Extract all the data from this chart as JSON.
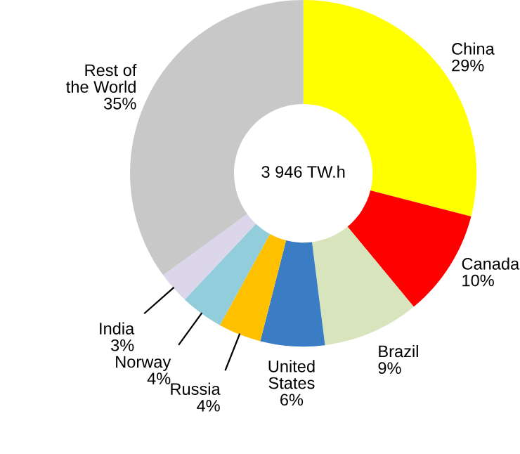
{
  "chart_data": {
    "type": "donut",
    "categories": [
      "China",
      "Canada",
      "Brazil",
      "United States",
      "Russia",
      "Norway",
      "India",
      "Rest of the World"
    ],
    "values": [
      29,
      10,
      9,
      6,
      4,
      4,
      3,
      35
    ],
    "value_labels": [
      "29%",
      "10%",
      "9%",
      "6%",
      "4%",
      "4%",
      "3%",
      "35%"
    ],
    "colors": [
      "#ffff00",
      "#ff0000",
      "#d8e4bc",
      "#3b7dc4",
      "#ffc000",
      "#92cddc",
      "#dcd6ea",
      "#c8c8c8"
    ],
    "annotations": [
      "3 946 TW.h"
    ],
    "legend": false
  }
}
